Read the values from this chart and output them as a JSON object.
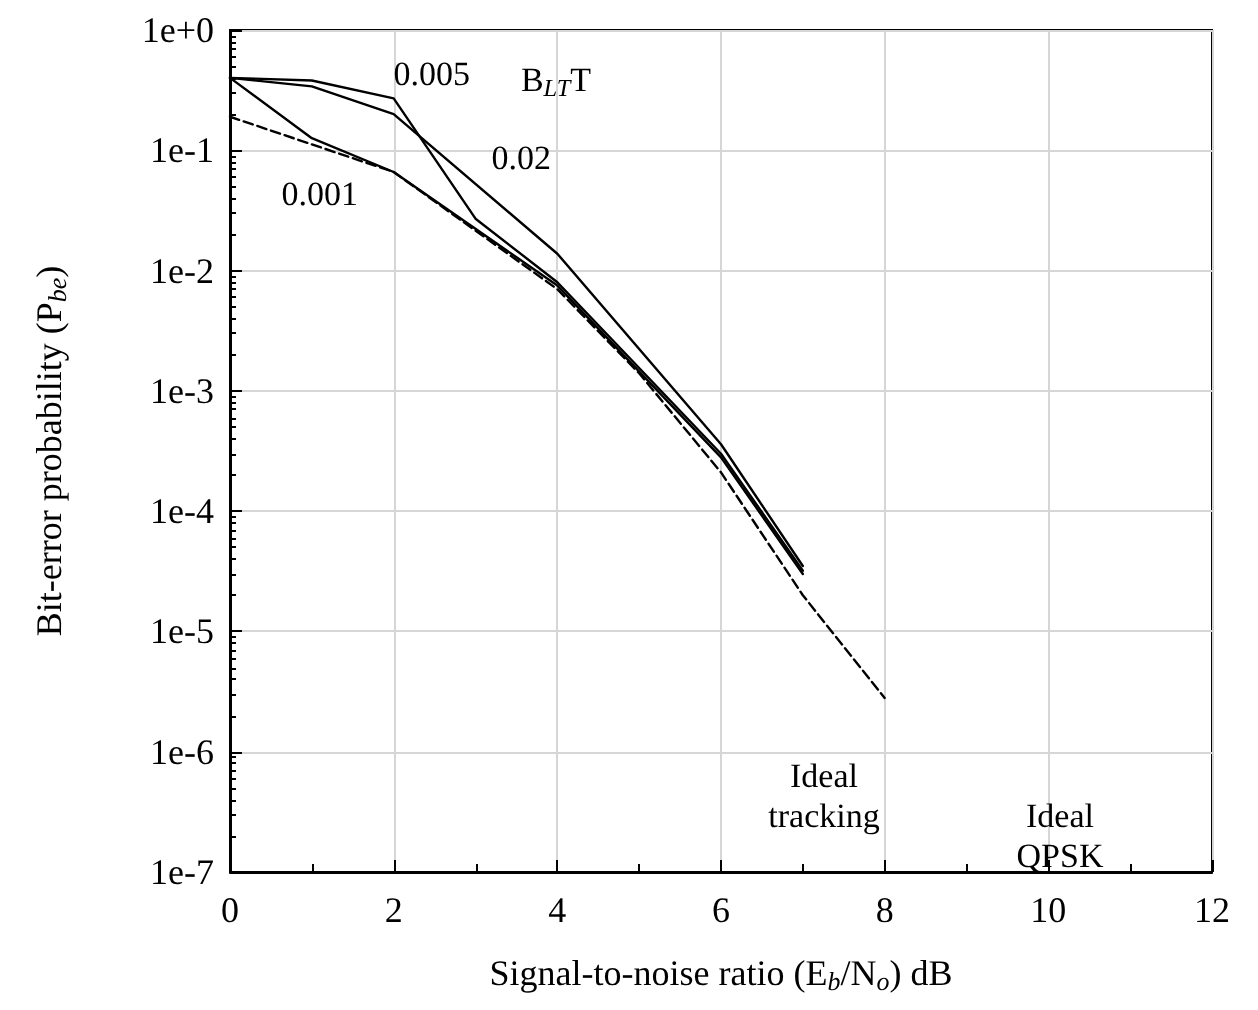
{
  "chart_data": {
    "type": "line",
    "xlabel": "Signal-to-noise ratio (E$_{b}$/N$_{o}$) dB",
    "ylabel": "Bit-error probability (P$_{be}$)",
    "xlim": [
      0,
      12
    ],
    "xticks": [
      0,
      2,
      4,
      6,
      8,
      10,
      12
    ],
    "log": "y",
    "ylim": [
      1e-07,
      1
    ],
    "yticks": [
      {
        "value": 1e-07,
        "label": "1e-7"
      },
      {
        "value": 1e-06,
        "label": "1e-6"
      },
      {
        "value": 1e-05,
        "label": "1e-5"
      },
      {
        "value": 0.0001,
        "label": "1e-4"
      },
      {
        "value": 0.001,
        "label": "1e-3"
      },
      {
        "value": 0.01,
        "label": "1e-2"
      },
      {
        "value": 0.1,
        "label": "1e-1"
      },
      {
        "value": 1,
        "label": "1e+0"
      }
    ],
    "grid": true,
    "marker": "none",
    "series": [
      {
        "color": "#000000",
        "line_style": "solid",
        "x": [
          0,
          1,
          2,
          4,
          6,
          7
        ],
        "values": [
          0.4,
          0.126,
          0.066,
          0.0075,
          0.00028,
          3e-05
        ]
      },
      {
        "color": "#000000",
        "line_style": "solid",
        "x": [
          0,
          1,
          2,
          3,
          4,
          6,
          7
        ],
        "values": [
          0.4,
          0.38,
          0.27,
          0.027,
          0.008,
          0.0003,
          3.2e-05
        ]
      },
      {
        "color": "#000000",
        "line_style": "solid",
        "x": [
          0,
          1,
          2,
          4,
          6,
          7
        ],
        "values": [
          0.4,
          0.34,
          0.2,
          0.0138,
          0.00036,
          3.5e-05
        ]
      },
      {
        "color": "#000000",
        "line_style": "dashed",
        "x": [
          0,
          2,
          4,
          5,
          6,
          7,
          8
        ],
        "values": [
          0.19,
          0.066,
          0.007,
          0.0014,
          0.00021,
          2e-05,
          2.8e-06
        ]
      }
    ],
    "annotations": [
      {
        "text": "0.001",
        "x": 1,
        "y": 0.126
      },
      {
        "text": "0.005",
        "x": 2,
        "y": 0.27
      },
      "B$_{LT}$T",
      {
        "text": "0.02",
        "x": 4,
        "y": 0.0138
      },
      "Ideal\ntracking",
      "Ideal\nQPSK"
    ]
  }
}
